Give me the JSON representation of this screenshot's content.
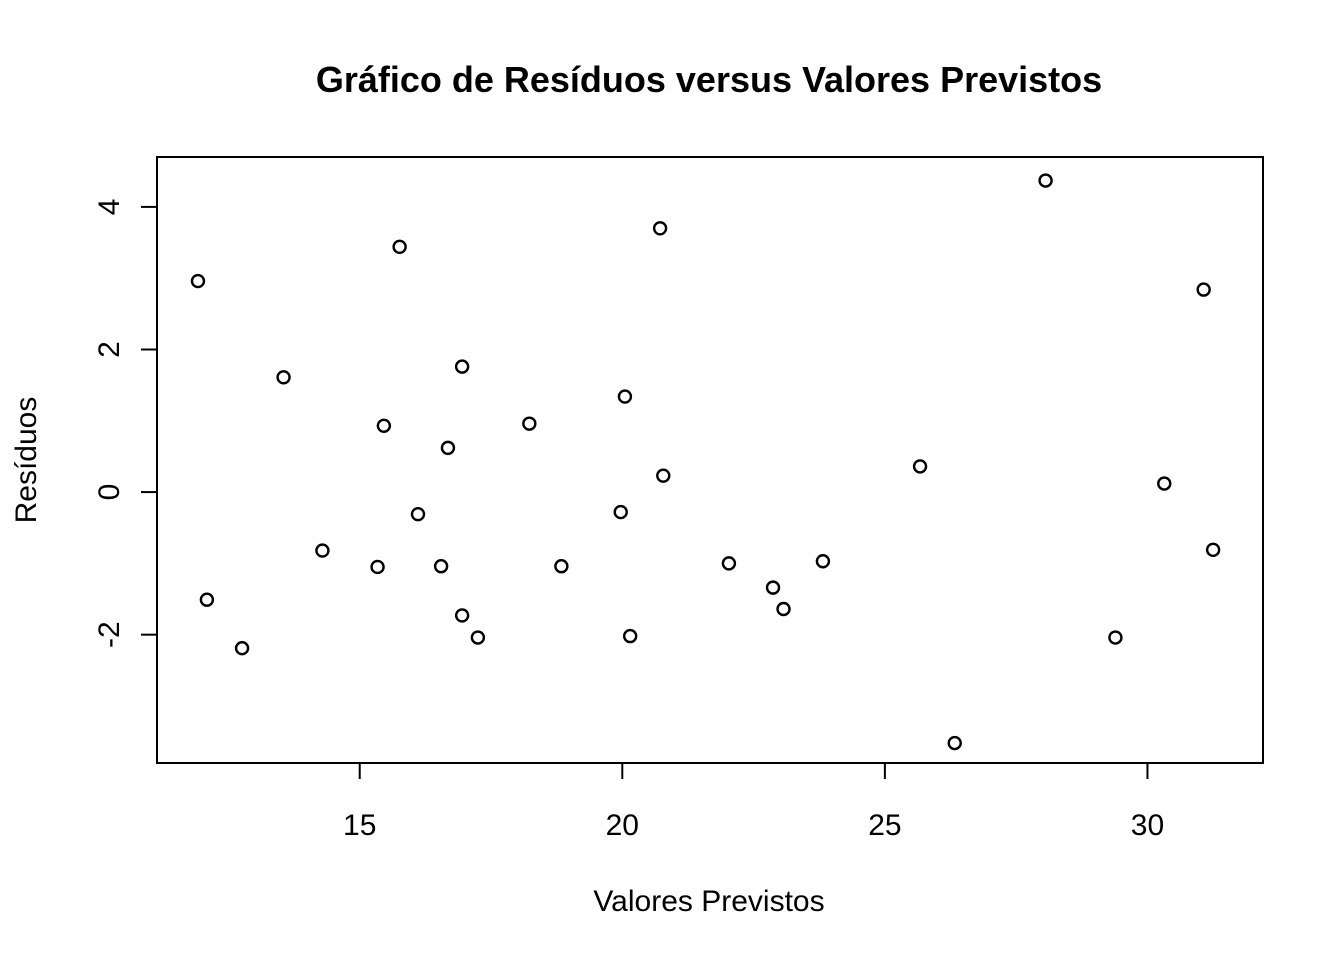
{
  "chart_data": {
    "type": "scatter",
    "title": "Gráfico de Resíduos versus Valores Previstos",
    "xlabel": "Valores Previstos",
    "ylabel": "Resíduos",
    "xlim": [
      11.14,
      32.2
    ],
    "ylim": [
      -3.8,
      4.7
    ],
    "x_ticks": [
      15,
      20,
      25,
      30
    ],
    "y_ticks": [
      -2,
      0,
      2,
      4
    ],
    "x_tick_labels": [
      "15",
      "20",
      "25",
      "30"
    ],
    "y_tick_labels": [
      "-2",
      "0",
      "2",
      "4"
    ],
    "grid": false,
    "legend": "none",
    "marker": "open-circle",
    "points": [
      {
        "x": 11.92,
        "y": 2.96
      },
      {
        "x": 12.09,
        "y": -1.51
      },
      {
        "x": 12.76,
        "y": -2.19
      },
      {
        "x": 13.55,
        "y": 1.61
      },
      {
        "x": 14.29,
        "y": -0.82
      },
      {
        "x": 15.34,
        "y": -1.05
      },
      {
        "x": 15.46,
        "y": 0.93
      },
      {
        "x": 15.76,
        "y": 3.44
      },
      {
        "x": 16.11,
        "y": -0.31
      },
      {
        "x": 16.55,
        "y": -1.04
      },
      {
        "x": 16.68,
        "y": 0.62
      },
      {
        "x": 16.95,
        "y": 1.76
      },
      {
        "x": 16.95,
        "y": -1.73
      },
      {
        "x": 17.25,
        "y": -2.04
      },
      {
        "x": 18.23,
        "y": 0.96
      },
      {
        "x": 18.84,
        "y": -1.04
      },
      {
        "x": 19.97,
        "y": -0.28
      },
      {
        "x": 20.05,
        "y": 1.34
      },
      {
        "x": 20.15,
        "y": -2.02
      },
      {
        "x": 20.72,
        "y": 3.7
      },
      {
        "x": 20.78,
        "y": 0.23
      },
      {
        "x": 22.03,
        "y": -1.0
      },
      {
        "x": 22.87,
        "y": -1.34
      },
      {
        "x": 23.07,
        "y": -1.64
      },
      {
        "x": 23.82,
        "y": -0.97
      },
      {
        "x": 25.67,
        "y": 0.36
      },
      {
        "x": 26.33,
        "y": -3.52
      },
      {
        "x": 28.06,
        "y": 4.37
      },
      {
        "x": 29.39,
        "y": -2.04
      },
      {
        "x": 30.32,
        "y": 0.12
      },
      {
        "x": 31.07,
        "y": 2.84
      },
      {
        "x": 31.25,
        "y": -0.81
      }
    ]
  }
}
